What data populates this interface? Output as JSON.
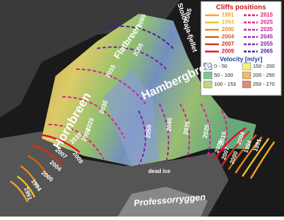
{
  "legend": {
    "cliffs_title": "Cliffs positions",
    "cliffs": [
      {
        "label": "1991",
        "color": "#f4a428",
        "style": "solid"
      },
      {
        "label": "2015",
        "color": "#e8186e",
        "style": "dashed"
      },
      {
        "label": "1994",
        "color": "#f0c020",
        "style": "solid"
      },
      {
        "label": "2025",
        "color": "#e0208a",
        "style": "dashed"
      },
      {
        "label": "2000",
        "color": "#f08a1a",
        "style": "solid"
      },
      {
        "label": "2035",
        "color": "#c8209c",
        "style": "dashed"
      },
      {
        "label": "2004",
        "color": "#c86414",
        "style": "solid"
      },
      {
        "label": "2045",
        "color": "#a020a8",
        "style": "dashed"
      },
      {
        "label": "2007",
        "color": "#d0301a",
        "style": "solid"
      },
      {
        "label": "2055",
        "color": "#7a20a8",
        "style": "dashed"
      },
      {
        "label": "2009",
        "color": "#e01030",
        "style": "solid"
      },
      {
        "label": "2065",
        "color": "#4a1a90",
        "style": "dashed"
      }
    ],
    "velocity_title": "Velocity [m/yr]",
    "velocity": [
      {
        "label": "0 - 50",
        "color": "#8fa6d8"
      },
      {
        "label": "150 - 200",
        "color": "#f4f07a"
      },
      {
        "label": "50 - 100",
        "color": "#7cc88c"
      },
      {
        "label": "200 - 250",
        "color": "#f0b86a"
      },
      {
        "label": "100 - 153",
        "color": "#b8dc7a"
      },
      {
        "label": "250 - 270",
        "color": "#e48870"
      }
    ]
  },
  "map": {
    "labels": [
      "Stolovaja-fjellet",
      "Flatbreen",
      "Hornbreen",
      "Hambergbreen",
      "dead ice",
      "Professorryggen"
    ],
    "contour_labels": [
      "2065",
      "2055",
      "2015",
      "2035",
      "2025",
      "2005",
      "2015",
      "2055",
      "2045",
      "2035",
      "2025",
      "2015",
      "2065"
    ],
    "cliff_labels": [
      "2007",
      "2004",
      "2000",
      "1994",
      "1991",
      "2009",
      "2009",
      "2007",
      "2000",
      "2004",
      "1994",
      "1991"
    ]
  }
}
